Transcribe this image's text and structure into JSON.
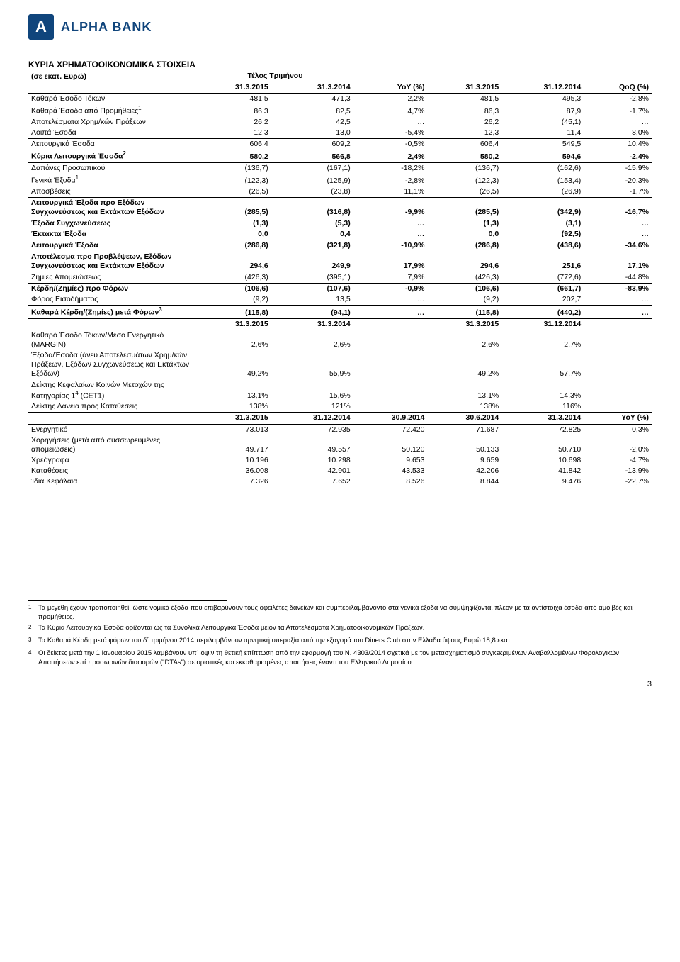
{
  "logo": {
    "mark_letter": "A",
    "text": "ALPHA BANK"
  },
  "title": "ΚΥΡΙΑ ΧΡΗΜΑΤΟΟΙΚΟΝΟΜΙΚΑ ΣΤΟΙΧΕΙΑ",
  "subtitle": "(σε εκατ. Ευρώ)",
  "quarter_end_label": "Τέλος Τριμήνου",
  "sec1": {
    "headers": [
      "31.3.2015",
      "31.3.2014",
      "YoY (%)",
      "31.3.2015",
      "31.12.2014",
      "QoQ (%)"
    ],
    "rows": [
      {
        "label": "Καθαρό Έσοδο Τόκων",
        "c": [
          "481,5",
          "471,3",
          "2,2%",
          "481,5",
          "495,3",
          "-2,8%"
        ],
        "bold": false
      },
      {
        "label": "Καθαρά Έσοδα από Προμήθειες",
        "sup": "1",
        "c": [
          "86,3",
          "82,5",
          "4,7%",
          "86,3",
          "87,9",
          "-1,7%"
        ],
        "bold": false
      },
      {
        "label": "Αποτελέσματα Χρημ/κών Πράξεων",
        "c": [
          "26,2",
          "42,5",
          "…",
          "26,2",
          "(45,1)",
          "…"
        ],
        "bold": false
      },
      {
        "label": "Λοιπά Έσοδα",
        "c": [
          "12,3",
          "13,0",
          "-5,4%",
          "12,3",
          "11,4",
          "8,0%"
        ],
        "bold": false,
        "bb": true
      },
      {
        "label": "Λειτουργικά Έσοδα",
        "c": [
          "606,4",
          "609,2",
          "-0,5%",
          "606,4",
          "549,5",
          "10,4%"
        ],
        "bold": false
      },
      {
        "label": "Κύρια Λειτουργικά Έσοδα",
        "sup": "2",
        "c": [
          "580,2",
          "566,8",
          "2,4%",
          "580,2",
          "594,6",
          "-2,4%"
        ],
        "bold": true,
        "bb": true
      },
      {
        "label": "Δαπάνες Προσωπικού",
        "c": [
          "(136,7)",
          "(167,1)",
          "-18,2%",
          "(136,7)",
          "(162,6)",
          "-15,9%"
        ],
        "bold": false
      },
      {
        "label": "Γενικά Έξοδα",
        "sup": "1",
        "c": [
          "(122,3)",
          "(125,9)",
          "-2,8%",
          "(122,3)",
          "(153,4)",
          "-20,3%"
        ],
        "bold": false
      },
      {
        "label": "Αποσβέσεις",
        "c": [
          "(26,5)",
          "(23,8)",
          "11,1%",
          "(26,5)",
          "(26,9)",
          "-1,7%"
        ],
        "bold": false,
        "bb": true
      },
      {
        "label": "Λειτουργικά Έξοδα προ Εξόδων Συγχωνεύσεως και Εκτάκτων Εξόδων",
        "c": [
          "(285,5)",
          "(316,8)",
          "-9,9%",
          "(285,5)",
          "(342,9)",
          "-16,7%"
        ],
        "bold": true,
        "bb": true
      },
      {
        "label": "Έξοδα Συγχωνεύσεως",
        "c": [
          "(1,3)",
          "(5,3)",
          "…",
          "(1,3)",
          "(3,1)",
          "…"
        ],
        "bold": true
      },
      {
        "label": "Έκτακτα Έξοδα",
        "c": [
          "0,0",
          "0,4",
          "…",
          "0,0",
          "(92,5)",
          "…"
        ],
        "bold": true,
        "bb": true
      },
      {
        "label": "Λειτουργικά Έξοδα",
        "c": [
          "(286,8)",
          "(321,8)",
          "-10,9%",
          "(286,8)",
          "(438,6)",
          "-34,6%"
        ],
        "bold": true
      },
      {
        "label": "Αποτέλεσμα προ Προβλέψεων, Εξόδων Συγχωνεύσεως και Εκτάκτων Εξόδων",
        "c": [
          "294,6",
          "249,9",
          "17,9%",
          "294,6",
          "251,6",
          "17,1%"
        ],
        "bold": true,
        "bb": true
      },
      {
        "label": "Ζημίες Απομειώσεως",
        "c": [
          "(426,3)",
          "(395,1)",
          "7,9%",
          "(426,3)",
          "(772,6)",
          "-44,8%"
        ],
        "bold": false,
        "bb": true
      },
      {
        "label": "Κέρδη/(Ζημίες) προ Φόρων",
        "c": [
          "(106,6)",
          "(107,6)",
          "-0,9%",
          "(106,6)",
          "(661,7)",
          "-83,9%"
        ],
        "bold": true
      },
      {
        "label": "Φόρος Εισοδήματος",
        "c": [
          "(9,2)",
          "13,5",
          "…",
          "(9,2)",
          "202,7",
          "…"
        ],
        "bold": false,
        "bb": true
      },
      {
        "label": "Καθαρά Κέρδη/(Ζημίες) μετά Φόρων",
        "sup": "3",
        "c": [
          "(115,8)",
          "(94,1)",
          "…",
          "(115,8)",
          "(440,2)",
          "…"
        ],
        "bold": true,
        "bb": true
      }
    ]
  },
  "sec2": {
    "headers": [
      "31.3.2015",
      "31.3.2014",
      "",
      "31.3.2015",
      "31.12.2014",
      ""
    ],
    "rows": [
      {
        "label": "Καθαρό Έσοδο Τόκων/Μέσο Ενεργητικό (MARGIN)",
        "c": [
          "2,6%",
          "2,6%",
          "",
          "2,6%",
          "2,7%",
          ""
        ],
        "bold": false
      },
      {
        "label": "Έξοδα/Έσοδα (άνευ Αποτελεσμάτων Χρημ/κών Πράξεων, Εξόδων Συγχωνεύσεως και Εκτάκτων Εξόδων)",
        "c": [
          "49,2%",
          "55,9%",
          "",
          "49,2%",
          "57,7%",
          ""
        ],
        "bold": false
      },
      {
        "label": "Δείκτης Κεφαλαίων Κοινών Μετοχών της Κατηγορίας 1",
        "sup": "4",
        "label_suffix": " (CET1)",
        "c": [
          "13,1%",
          "15,6%",
          "",
          "13,1%",
          "14,3%",
          ""
        ],
        "bold": false
      },
      {
        "label": "Δείκτης Δάνεια προς Καταθέσεις",
        "c": [
          "138%",
          "121%",
          "",
          "138%",
          "116%",
          ""
        ],
        "bold": false,
        "bb": true
      }
    ]
  },
  "sec3": {
    "headers": [
      "31.3.2015",
      "31.12.2014",
      "30.9.2014",
      "30.6.2014",
      "31.3.2014",
      "YoY (%)"
    ],
    "rows": [
      {
        "label": "Ενεργητικό",
        "c": [
          "73.013",
          "72.935",
          "72.420",
          "71.687",
          "72.825",
          "0,3%"
        ],
        "bold": false
      },
      {
        "label": "Χορηγήσεις (μετά από συσσωρευμένες απομειώσεις)",
        "c": [
          "49.717",
          "49.557",
          "50.120",
          "50.133",
          "50.710",
          "-2,0%"
        ],
        "bold": false
      },
      {
        "label": "Χρεόγραφα",
        "c": [
          "10.196",
          "10.298",
          "9.653",
          "9.659",
          "10.698",
          "-4,7%"
        ],
        "bold": false
      },
      {
        "label": "Καταθέσεις",
        "c": [
          "36.008",
          "42.901",
          "43.533",
          "42.206",
          "41.842",
          "-13,9%"
        ],
        "bold": false
      },
      {
        "label": "Ίδια Κεφάλαια",
        "c": [
          "7.326",
          "7.652",
          "8.526",
          "8.844",
          "9.476",
          "-22,7%"
        ],
        "bold": false
      }
    ]
  },
  "footnotes": [
    {
      "n": "1",
      "t": "Τα μεγέθη έχουν τροποποιηθεί, ώστε νομικά έξοδα που επιβαρύνουν τους οφειλέτες δανείων και συμπεριλαμβάνοντο στα γενικά έξοδα να συμψηφίζονται πλέον με τα αντίστοιχα έσοδα από αμοιβές και προμήθειες."
    },
    {
      "n": "2",
      "t": "Τα Κύρια Λειτουργικά Έσοδα ορίζονται ως τα Συνολικά Λειτουργικά Έσοδα μείον τα Αποτελέσματα Χρηματοοικονομικών Πράξεων."
    },
    {
      "n": "3",
      "t": "Τα Καθαρά Κέρδη μετά φόρων του δ΄ τριμήνου 2014 περιλαμβάνουν αρνητική υπεραξία από την εξαγορά του Diners Club στην Ελλάδα ύψους Ευρώ 18,8 εκατ."
    },
    {
      "n": "4",
      "t": "Οι δείκτες μετά την 1 Ιανουαρίου 2015 λαμβάνουν υπ΄ όψιν τη θετική επίπτωση από την εφαρμογή του Ν. 4303/2014 σχετικά με τον μετασχηματισμό συγκεκριμένων Αναβαλλομένων Φορολογικών Απαιτήσεων επί προσωρινών διαφορών (\"DTAs\") σε οριστικές και εκκαθαρισμένες απαιτήσεις έναντι του Ελληνικού Δημοσίου."
    }
  ],
  "page_number": "3"
}
